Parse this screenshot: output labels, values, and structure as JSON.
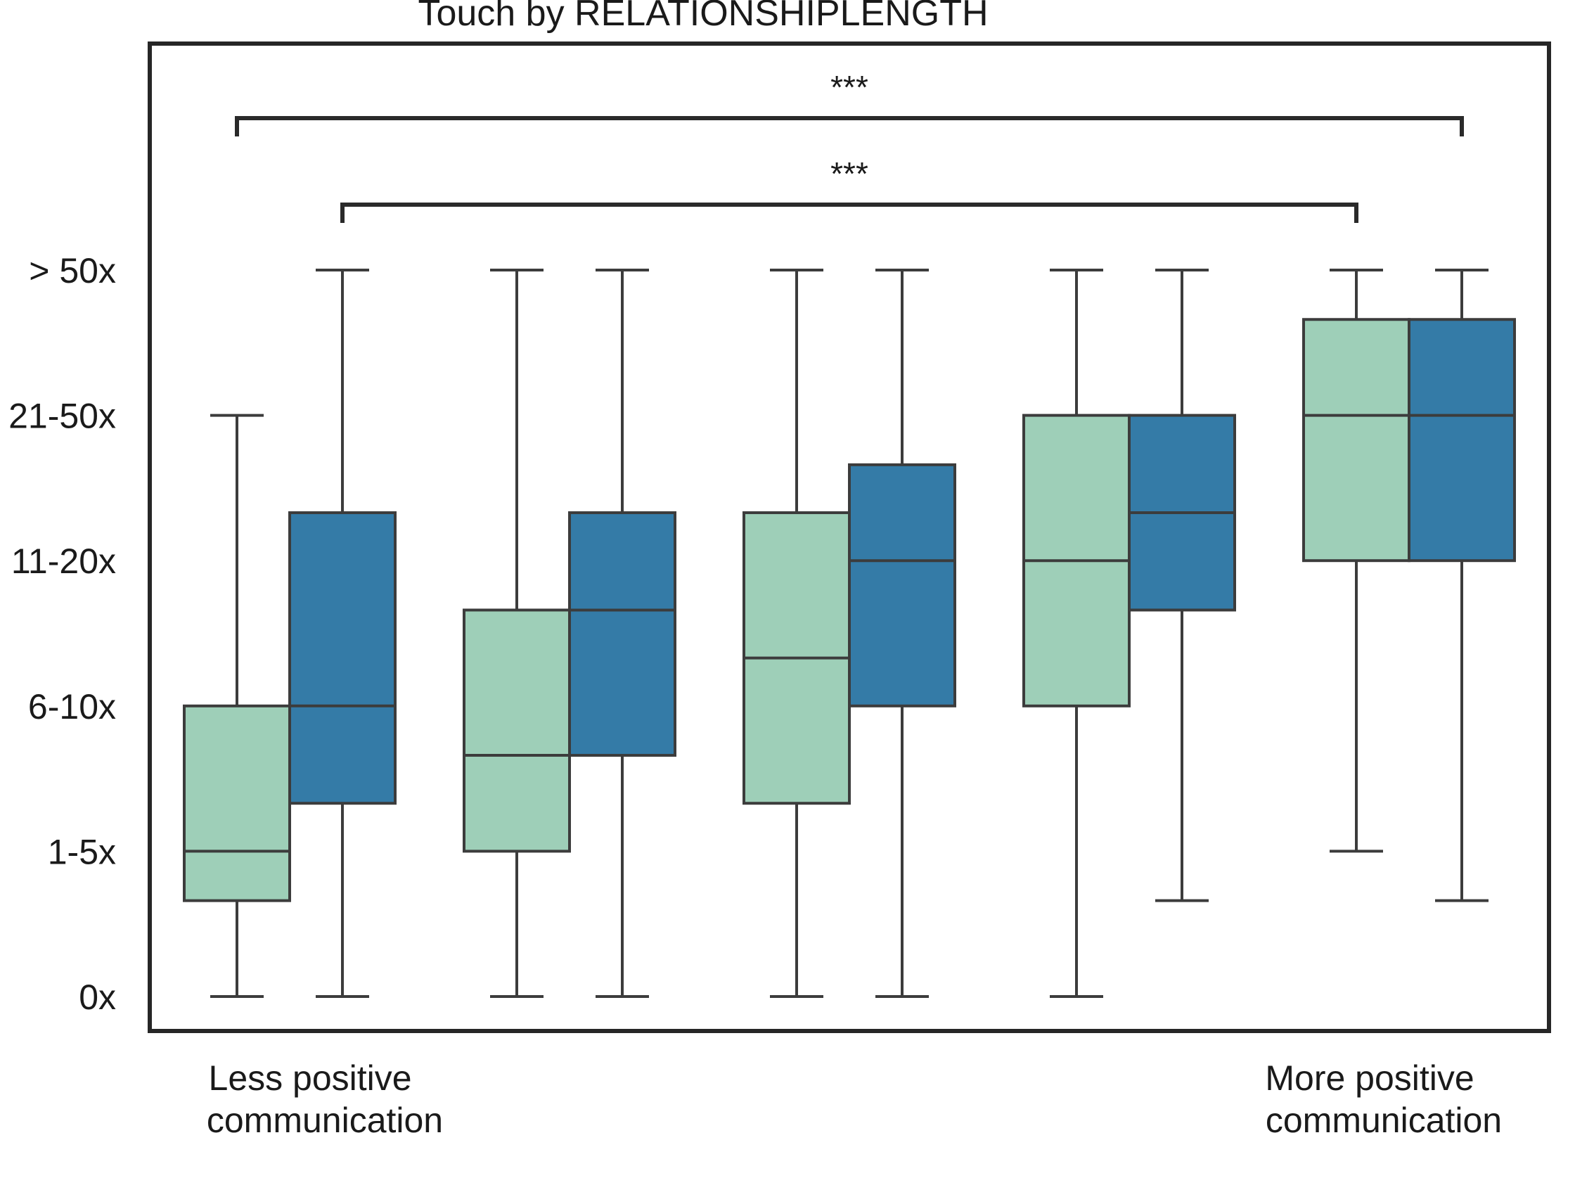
{
  "chart_data": {
    "type": "box",
    "title": "Touch by RELATIONSHIPLENGTH",
    "ylabel": "",
    "xlabel": "",
    "y_ticks": [
      "0x",
      "1-5x",
      "6-10x",
      "11-20x",
      "21-50x",
      "> 50x"
    ],
    "y_tick_values": [
      0,
      1,
      2,
      3,
      4,
      5
    ],
    "ylim": [
      -0.25,
      6.6
    ],
    "x_caption_left": "Less positive\ncommunication",
    "x_caption_right": "More positive\ncommunication",
    "group_count": 5,
    "grid": false,
    "legend": "none",
    "colors": {
      "series_a": "#9ecfb8",
      "series_b": "#347ba7",
      "stroke": "#3c3c3c",
      "frame": "#262626"
    },
    "series": [
      {
        "color": "#9ecfb8",
        "boxes": [
          {
            "group": 1,
            "whisker_low": 0,
            "q1": 0.66,
            "median": 1.0,
            "q3": 2.0,
            "whisker_high": 4.0
          },
          {
            "group": 2,
            "whisker_low": 0,
            "q1": 1.0,
            "median": 1.66,
            "q3": 2.66,
            "whisker_high": 5.0
          },
          {
            "group": 3,
            "whisker_low": 0,
            "q1": 1.33,
            "median": 2.33,
            "q3": 3.33,
            "whisker_high": 5.0
          },
          {
            "group": 4,
            "whisker_low": 0,
            "q1": 2.0,
            "median": 3.0,
            "q3": 4.0,
            "whisker_high": 5.0
          },
          {
            "group": 5,
            "whisker_low": 1.0,
            "q1": 3.0,
            "median": 4.0,
            "q3": 4.66,
            "whisker_high": 5.0
          }
        ]
      },
      {
        "color": "#347ba7",
        "boxes": [
          {
            "group": 1,
            "whisker_low": 0,
            "q1": 1.33,
            "median": 2.0,
            "q3": 3.33,
            "whisker_high": 5.0
          },
          {
            "group": 2,
            "whisker_low": 0,
            "q1": 1.66,
            "median": 2.66,
            "q3": 3.33,
            "whisker_high": 5.0
          },
          {
            "group": 3,
            "whisker_low": 0,
            "q1": 2.0,
            "median": 3.0,
            "q3": 3.66,
            "whisker_high": 5.0
          },
          {
            "group": 4,
            "whisker_low": 0.66,
            "q1": 2.66,
            "median": 3.33,
            "q3": 4.0,
            "whisker_high": 5.0
          },
          {
            "group": 5,
            "whisker_low": 0.66,
            "q1": 3.0,
            "median": 4.0,
            "q3": 4.66,
            "whisker_high": 5.0
          }
        ]
      }
    ],
    "annotations": [
      {
        "label": "***",
        "from_group": 1,
        "from_series": 1,
        "to_group": 5,
        "to_series": 0,
        "level": 1
      },
      {
        "label": "***",
        "from_group": 1,
        "from_series": 0,
        "to_group": 5,
        "to_series": 1,
        "level": 2
      }
    ]
  }
}
